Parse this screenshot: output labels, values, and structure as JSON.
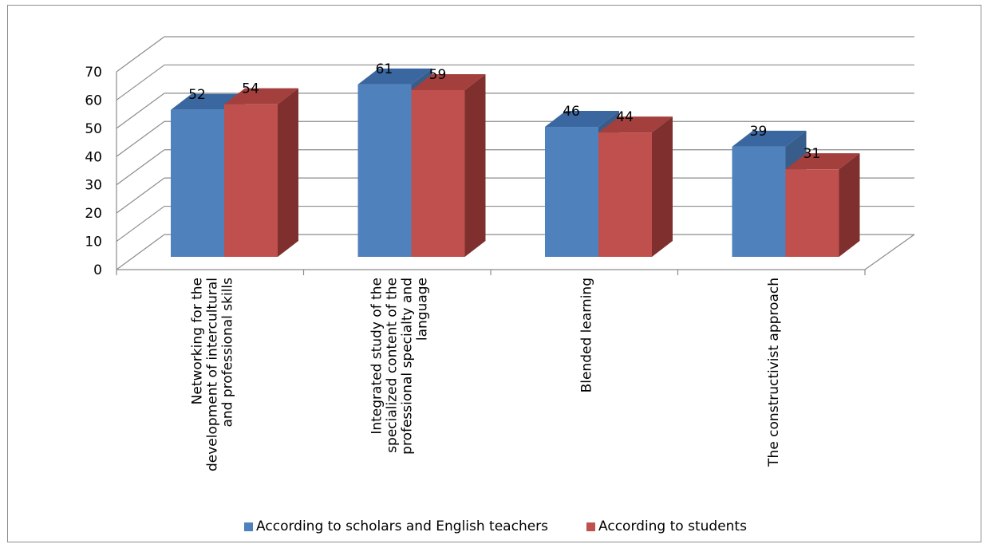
{
  "chart_data": {
    "type": "bar",
    "categories": [
      [
        "Networking for the",
        "development of intercultural",
        "and professional skills"
      ],
      [
        "Integrated study of the",
        "specialized content of the",
        "professional specialty and",
        "language"
      ],
      [
        "Blended learning"
      ],
      [
        "The constructivist approach"
      ]
    ],
    "series": [
      {
        "name": "According to scholars and English teachers",
        "values": [
          52,
          61,
          46,
          39
        ],
        "color": "#4F81BD",
        "side_color": "#385D8A",
        "top_color": "#3A67A0"
      },
      {
        "name": "According to students",
        "values": [
          54,
          59,
          44,
          31
        ],
        "color": "#C0504D",
        "side_color": "#7F302E",
        "top_color": "#A33F3C"
      }
    ],
    "yticks": [
      0,
      10,
      20,
      30,
      40,
      50,
      60,
      70
    ],
    "ylim": [
      0,
      70
    ],
    "grid": true,
    "three_d": true,
    "legend_position": "bottom"
  }
}
